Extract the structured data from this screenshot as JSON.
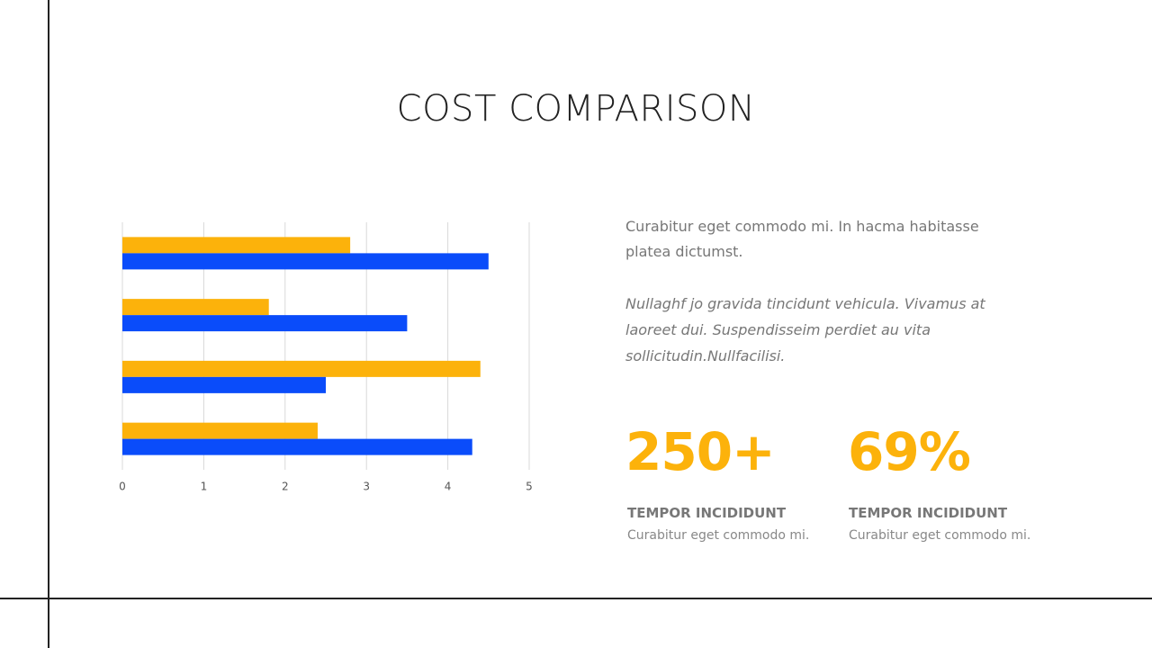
{
  "title": "COST COMPARISON",
  "chart_data": {
    "type": "bar",
    "orientation": "horizontal",
    "categories": [
      null,
      null,
      null,
      null
    ],
    "series": [
      {
        "color": "#fcb20b",
        "values": [
          2.8,
          1.8,
          4.4,
          2.4
        ]
      },
      {
        "color": "#0a4cfa",
        "values": [
          4.5,
          3.5,
          2.5,
          4.3
        ]
      }
    ],
    "xlim": [
      0,
      5
    ],
    "xticks": [
      0,
      1,
      2,
      3,
      4,
      5
    ],
    "grid": true
  },
  "intro": [
    "Curabitur eget commodo mi. In hacma habitasse",
    "platea dictumst."
  ],
  "quote": [
    "Nullaghf jo gravida tincidunt vehicula. Vivamus at",
    "laoreet dui. Suspendisseim perdiet au vita",
    "sollicitudin.Nullfacilisi."
  ],
  "stats": [
    {
      "value": "250+",
      "label": "TEMPOR INCIDIDUNT",
      "text": "Curabitur eget commodo mi."
    },
    {
      "value": "69%",
      "label": "TEMPOR INCIDIDUNT",
      "text": "Curabitur eget commodo mi."
    }
  ]
}
